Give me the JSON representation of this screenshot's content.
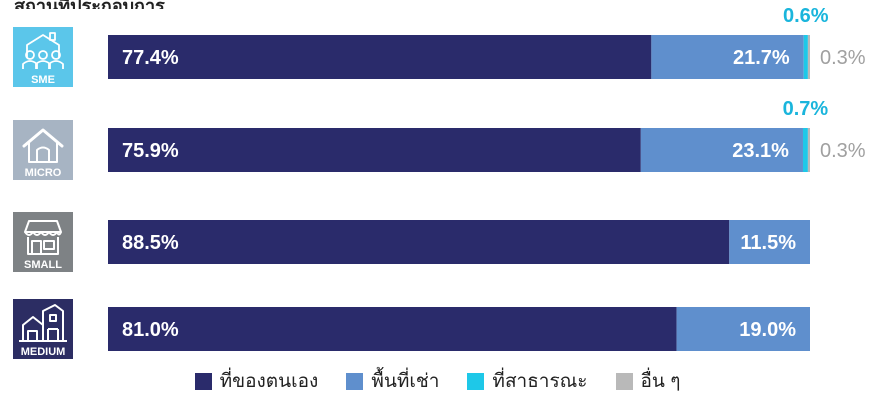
{
  "page": {
    "title": "สถานที่ประกอบการ"
  },
  "colors": {
    "own": "#2a2b6b",
    "rent": "#5f8fcd",
    "public": "#1ec8e8",
    "other": "#b9b9b9",
    "icon_sme": "#5bc6ea",
    "icon_micro": "#a7b4c3",
    "icon_small": "#7e8285",
    "icon_medium": "#2c2d63",
    "outside_public_label": "#1ab5dc",
    "outside_other_label": "#a0a0a0"
  },
  "chart_data": {
    "type": "bar",
    "orientation": "horizontal",
    "stacked": true,
    "xlim": [
      0,
      100
    ],
    "categories": [
      "SME",
      "MICRO",
      "SMALL",
      "MEDIUM"
    ],
    "category_icons": [
      "people-group-icon",
      "house-icon",
      "storefront-icon",
      "building-icon"
    ],
    "series": [
      {
        "name": "ที่ของตนเอง",
        "values": [
          77.4,
          75.9,
          88.5,
          81.0
        ]
      },
      {
        "name": "พื้นที่เช่า",
        "values": [
          21.7,
          23.1,
          11.5,
          19.0
        ]
      },
      {
        "name": "ที่สาธารณะ",
        "values": [
          0.6,
          0.7,
          0,
          0
        ]
      },
      {
        "name": "อื่น ๆ",
        "values": [
          0.3,
          0.3,
          0,
          0
        ]
      }
    ],
    "data_labels": [
      [
        "77.4%",
        "21.7%",
        "0.6%",
        "0.3%"
      ],
      [
        "75.9%",
        "23.1%",
        "0.7%",
        "0.3%"
      ],
      [
        "88.5%",
        "11.5%",
        "",
        ""
      ],
      [
        "81.0%",
        "19.0%",
        "",
        ""
      ]
    ],
    "legend_position": "bottom",
    "grid": false
  }
}
